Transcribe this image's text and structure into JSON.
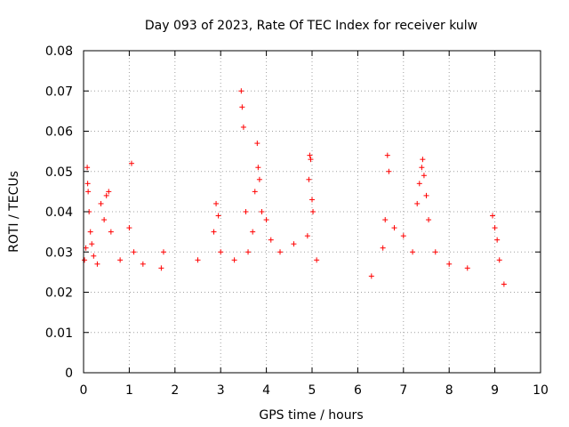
{
  "chart_data": {
    "type": "scatter",
    "title": "Day 093 of 2023, Rate Of TEC Index for receiver kulw",
    "xlabel": "GPS time / hours",
    "ylabel": "ROTI / TECUs",
    "xlim": [
      0,
      10
    ],
    "ylim": [
      0,
      0.08
    ],
    "x_ticks": [
      0,
      1,
      2,
      3,
      4,
      5,
      6,
      7,
      8,
      9,
      10
    ],
    "x_tick_labels": [
      "0",
      "1",
      "2",
      "3",
      "4",
      "5",
      "6",
      "7",
      "8",
      "9",
      "10"
    ],
    "y_ticks": [
      0,
      0.01,
      0.02,
      0.03,
      0.04,
      0.05,
      0.06,
      0.07,
      0.08
    ],
    "y_tick_labels": [
      "0",
      "0.01",
      "0.02",
      "0.03",
      "0.04",
      "0.05",
      "0.06",
      "0.07",
      "0.08"
    ],
    "grid": true,
    "marker": "+",
    "color": "#ff0000",
    "series": [
      {
        "name": "ROTI",
        "points": [
          [
            0.02,
            0.028
          ],
          [
            0.05,
            0.031
          ],
          [
            0.08,
            0.051
          ],
          [
            0.09,
            0.047
          ],
          [
            0.1,
            0.045
          ],
          [
            0.12,
            0.04
          ],
          [
            0.15,
            0.035
          ],
          [
            0.18,
            0.032
          ],
          [
            0.22,
            0.029
          ],
          [
            0.3,
            0.027
          ],
          [
            0.38,
            0.042
          ],
          [
            0.45,
            0.038
          ],
          [
            0.5,
            0.044
          ],
          [
            0.55,
            0.045
          ],
          [
            0.6,
            0.035
          ],
          [
            0.8,
            0.028
          ],
          [
            1.0,
            0.036
          ],
          [
            1.05,
            0.052
          ],
          [
            1.1,
            0.03
          ],
          [
            1.3,
            0.027
          ],
          [
            1.7,
            0.026
          ],
          [
            1.75,
            0.03
          ],
          [
            2.5,
            0.028
          ],
          [
            2.85,
            0.035
          ],
          [
            2.9,
            0.042
          ],
          [
            2.95,
            0.039
          ],
          [
            3.0,
            0.03
          ],
          [
            3.3,
            0.028
          ],
          [
            3.45,
            0.07
          ],
          [
            3.47,
            0.066
          ],
          [
            3.5,
            0.061
          ],
          [
            3.55,
            0.04
          ],
          [
            3.6,
            0.03
          ],
          [
            3.7,
            0.035
          ],
          [
            3.75,
            0.045
          ],
          [
            3.8,
            0.057
          ],
          [
            3.82,
            0.051
          ],
          [
            3.85,
            0.048
          ],
          [
            3.9,
            0.04
          ],
          [
            4.0,
            0.038
          ],
          [
            4.1,
            0.033
          ],
          [
            4.3,
            0.03
          ],
          [
            4.6,
            0.032
          ],
          [
            4.9,
            0.034
          ],
          [
            4.93,
            0.048
          ],
          [
            4.95,
            0.054
          ],
          [
            4.97,
            0.053
          ],
          [
            5.0,
            0.043
          ],
          [
            5.02,
            0.04
          ],
          [
            5.1,
            0.028
          ],
          [
            6.3,
            0.024
          ],
          [
            6.55,
            0.031
          ],
          [
            6.6,
            0.038
          ],
          [
            6.65,
            0.054
          ],
          [
            6.68,
            0.05
          ],
          [
            6.8,
            0.036
          ],
          [
            7.0,
            0.034
          ],
          [
            7.2,
            0.03
          ],
          [
            7.3,
            0.042
          ],
          [
            7.35,
            0.047
          ],
          [
            7.4,
            0.051
          ],
          [
            7.42,
            0.053
          ],
          [
            7.45,
            0.049
          ],
          [
            7.5,
            0.044
          ],
          [
            7.55,
            0.038
          ],
          [
            7.7,
            0.03
          ],
          [
            8.0,
            0.027
          ],
          [
            8.4,
            0.026
          ],
          [
            8.95,
            0.039
          ],
          [
            9.0,
            0.036
          ],
          [
            9.05,
            0.033
          ],
          [
            9.1,
            0.028
          ],
          [
            9.2,
            0.022
          ]
        ]
      }
    ]
  }
}
